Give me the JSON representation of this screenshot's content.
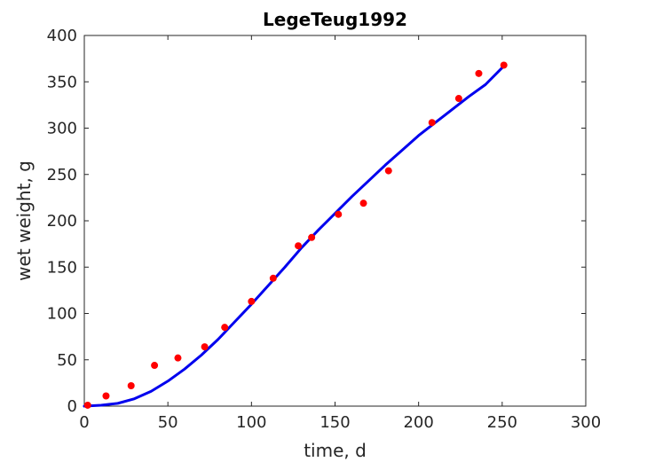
{
  "chart_data": {
    "type": "scatter",
    "title": "LegeTeug1992",
    "xlabel": "time, d",
    "ylabel": "wet weight, g",
    "xlim": [
      0,
      300
    ],
    "ylim": [
      0,
      400
    ],
    "xticks": [
      0,
      50,
      100,
      150,
      200,
      250,
      300
    ],
    "yticks": [
      0,
      50,
      100,
      150,
      200,
      250,
      300,
      350,
      400
    ],
    "xtick_labels": [
      "0",
      "50",
      "100",
      "150",
      "200",
      "250",
      "300"
    ],
    "ytick_labels": [
      "0",
      "50",
      "100",
      "150",
      "200",
      "250",
      "300",
      "350",
      "400"
    ],
    "grid": false,
    "legend": "none",
    "series": [
      {
        "kind": "points",
        "color": "#ff0000",
        "x": [
          2,
          13,
          28,
          42,
          56,
          72,
          84,
          100,
          113,
          128,
          136,
          152,
          167,
          182,
          208,
          224,
          236,
          251
        ],
        "y": [
          1,
          11,
          22,
          44,
          52,
          64,
          85,
          113,
          138,
          173,
          182,
          207,
          219,
          254,
          306,
          332,
          359,
          368
        ]
      },
      {
        "kind": "line",
        "color": "#0000ee",
        "x": [
          0,
          10,
          20,
          30,
          40,
          50,
          60,
          70,
          80,
          90,
          100,
          110,
          120,
          130,
          140,
          150,
          160,
          170,
          180,
          190,
          200,
          210,
          220,
          230,
          240,
          251
        ],
        "y": [
          0,
          1,
          3,
          8,
          16,
          27,
          40,
          55,
          72,
          91,
          110,
          130,
          150,
          171,
          190,
          208,
          226,
          243,
          260,
          276,
          292,
          306,
          320,
          334,
          347,
          367
        ]
      }
    ]
  }
}
